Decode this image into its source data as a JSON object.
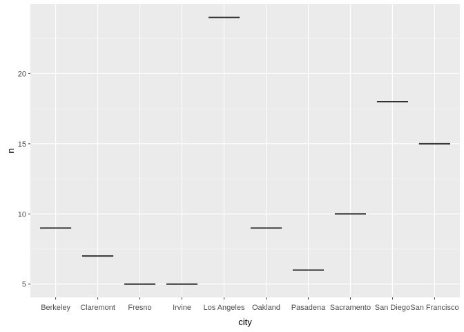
{
  "chart_data": {
    "type": "crossbar",
    "title": "",
    "xlabel": "city",
    "ylabel": "n",
    "categories": [
      "Berkeley",
      "Claremont",
      "Fresno",
      "Irvine",
      "Los Angeles",
      "Oakland",
      "Pasadena",
      "Sacramento",
      "San Diego",
      "San Francisco"
    ],
    "values": [
      9,
      7,
      5,
      5,
      24,
      9,
      6,
      10,
      18,
      15
    ],
    "ylim": [
      4.05,
      24.95
    ],
    "yticks": [
      5,
      10,
      15,
      20
    ],
    "grid": true,
    "legend": "none",
    "colors": {
      "panel_bg": "#ebebeb",
      "grid_major": "#ffffff",
      "grid_minor": "#f5f5f5",
      "mark": "#333333",
      "tick_label": "#4d4d4d"
    }
  }
}
